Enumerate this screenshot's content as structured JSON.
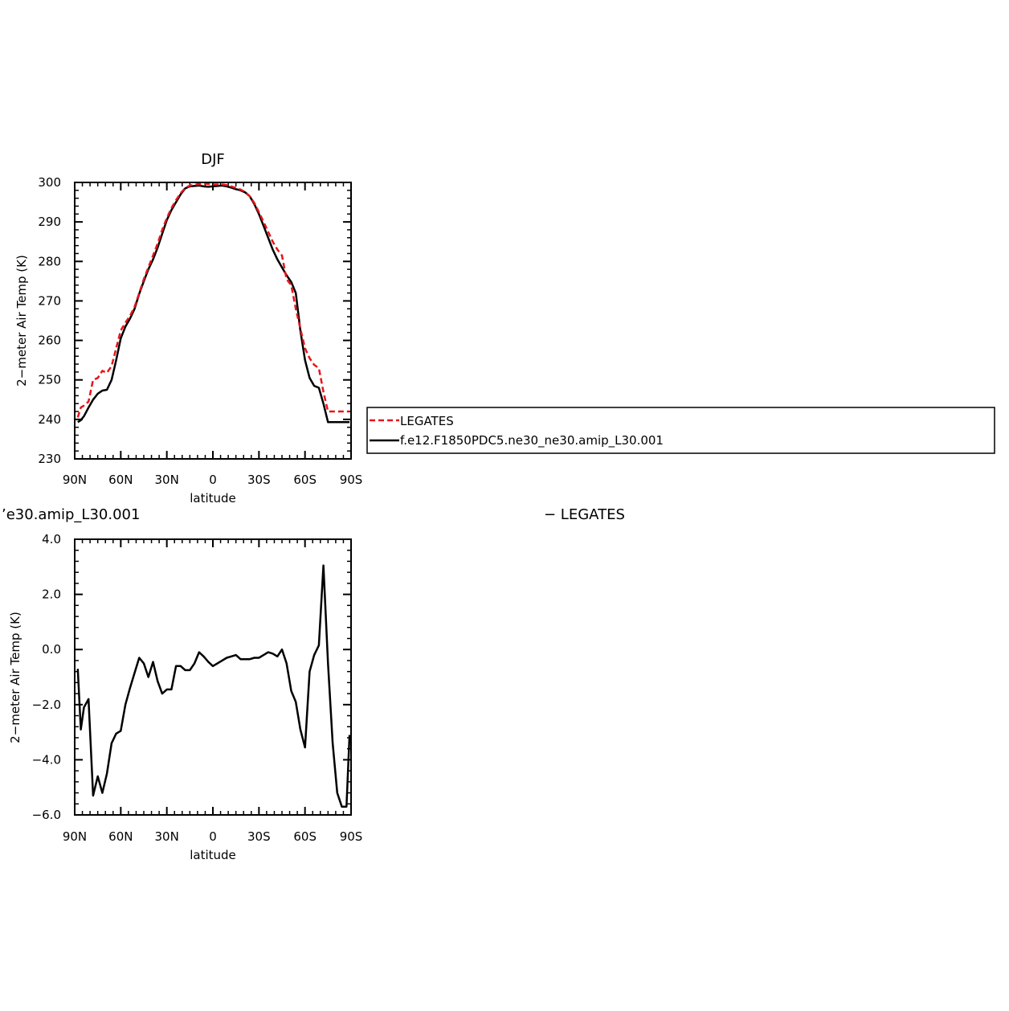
{
  "colors": {
    "obs": "#e8141b",
    "model": "#000000",
    "axis": "#000000"
  },
  "chart_data": [
    {
      "type": "line",
      "title": "DJF",
      "xlabel": "latitude",
      "ylabel": "2−meter Air Temp (K)",
      "xlim": [
        -90,
        90
      ],
      "ylim": [
        230,
        300
      ],
      "xticks": [
        -90,
        -60,
        -30,
        0,
        30,
        60,
        90
      ],
      "xtick_labels": [
        "90N",
        "60N",
        "30N",
        "0",
        "30S",
        "60S",
        "90S"
      ],
      "yticks": [
        230,
        240,
        250,
        260,
        270,
        280,
        290,
        300
      ],
      "ytick_labels": [
        "230",
        "240",
        "250",
        "260",
        "270",
        "280",
        "290",
        "300"
      ],
      "x_minor_step": 5,
      "y_minor_step": 2,
      "legend": {
        "placement": "right",
        "entries": [
          "LEGATES",
          "f.e12.F1850PDC5.ne30_ne30.amip_L30.001"
        ]
      },
      "series": [
        {
          "name": "LEGATES",
          "color": "#e8141b",
          "dash": "dashed",
          "x": [
            -88,
            -86,
            -84,
            -81,
            -78,
            -75,
            -72,
            -69,
            -66,
            -63,
            -60,
            -57,
            -54,
            -51,
            -48,
            -45,
            -42,
            -39,
            -36,
            -33,
            -30,
            -27,
            -24,
            -21,
            -18,
            -15,
            -12,
            -9,
            -6,
            -3,
            0,
            3,
            6,
            9,
            12,
            15,
            18,
            21,
            24,
            27,
            30,
            33,
            36,
            39,
            42,
            45,
            48,
            51,
            54,
            57,
            60,
            63,
            66,
            69,
            72,
            75,
            78,
            81,
            84,
            87,
            89
          ],
          "values": [
            240.5,
            243.0,
            243.5,
            244.5,
            250.0,
            250.5,
            252.3,
            251.8,
            253.5,
            258.0,
            262.5,
            264.5,
            266.2,
            268.5,
            272.0,
            275.5,
            278.5,
            281.5,
            284.5,
            288.0,
            291.0,
            293.5,
            295.5,
            297.3,
            298.6,
            299.2,
            299.4,
            299.6,
            299.7,
            299.6,
            299.5,
            299.5,
            299.5,
            299.3,
            299.0,
            298.6,
            298.2,
            297.6,
            296.5,
            294.8,
            292.5,
            290.0,
            287.5,
            285.0,
            283.0,
            281.5,
            275.5,
            274.0,
            268.0,
            263.0,
            258.0,
            255.5,
            253.8,
            253.0,
            247.0,
            242.0,
            242.0,
            242.0,
            242.0,
            242.0,
            242.0
          ]
        },
        {
          "name": "f.e12.F1850PDC5.ne30_ne30.amip_L30.001",
          "color": "#000000",
          "dash": "solid",
          "x": [
            -88,
            -86,
            -84,
            -81,
            -78,
            -75,
            -72,
            -69,
            -66,
            -63,
            -60,
            -57,
            -54,
            -51,
            -48,
            -45,
            -42,
            -39,
            -36,
            -33,
            -30,
            -27,
            -24,
            -21,
            -18,
            -15,
            -12,
            -9,
            -6,
            -3,
            0,
            3,
            6,
            9,
            12,
            15,
            18,
            21,
            24,
            27,
            30,
            33,
            36,
            39,
            42,
            45,
            48,
            51,
            54,
            57,
            60,
            63,
            66,
            69,
            72,
            75,
            78,
            81,
            84,
            87,
            89
          ],
          "values": [
            239.3,
            239.8,
            240.8,
            243.0,
            245.0,
            246.5,
            247.3,
            247.5,
            250.0,
            255.0,
            260.5,
            263.5,
            265.5,
            268.0,
            271.8,
            275.0,
            278.0,
            280.5,
            283.5,
            287.0,
            290.5,
            293.0,
            295.0,
            297.0,
            298.5,
            299.0,
            299.1,
            299.2,
            299.0,
            298.9,
            299.0,
            299.1,
            299.2,
            299.0,
            298.7,
            298.3,
            298.0,
            297.5,
            296.5,
            294.5,
            292.0,
            289.0,
            286.0,
            283.0,
            280.5,
            278.5,
            276.5,
            274.8,
            272.0,
            262.5,
            255.0,
            250.5,
            248.5,
            248.0,
            244.0,
            239.3,
            239.3,
            239.3,
            239.3,
            239.3,
            239.3
          ]
        }
      ]
    },
    {
      "type": "line",
      "title": "’e30.amip_L30.001",
      "subtitle": "− LEGATES",
      "xlabel": "latitude",
      "ylabel": "2−meter Air Temp (K)",
      "xlim": [
        -90,
        90
      ],
      "ylim": [
        -6,
        4
      ],
      "xticks": [
        -90,
        -60,
        -30,
        0,
        30,
        60,
        90
      ],
      "xtick_labels": [
        "90N",
        "60N",
        "30N",
        "0",
        "30S",
        "60S",
        "90S"
      ],
      "yticks": [
        -6,
        -4,
        -2,
        0,
        2,
        4
      ],
      "ytick_labels": [
        "−6.0",
        "−4.0",
        "−2.0",
        "0.0",
        "2.0",
        "4.0"
      ],
      "x_minor_step": 5,
      "y_minor_step": 0.4,
      "series": [
        {
          "color": "#000000",
          "dash": "solid",
          "x": [
            -88,
            -86,
            -84,
            -81,
            -78,
            -75,
            -72,
            -69,
            -66,
            -63,
            -60,
            -57,
            -54,
            -51,
            -48,
            -45,
            -42,
            -39,
            -36,
            -33,
            -30,
            -27,
            -24,
            -21,
            -18,
            -15,
            -12,
            -9,
            -6,
            -3,
            0,
            3,
            6,
            9,
            12,
            15,
            18,
            21,
            24,
            27,
            30,
            33,
            36,
            39,
            42,
            45,
            48,
            51,
            54,
            57,
            60,
            63,
            66,
            69,
            72,
            75,
            78,
            81,
            84,
            87,
            89
          ],
          "values": [
            -0.7,
            -2.9,
            -2.1,
            -1.8,
            -5.3,
            -4.6,
            -5.2,
            -4.5,
            -3.4,
            -3.05,
            -2.95,
            -2.0,
            -1.4,
            -0.85,
            -0.3,
            -0.5,
            -1.0,
            -0.45,
            -1.15,
            -1.6,
            -1.45,
            -1.45,
            -0.6,
            -0.6,
            -0.75,
            -0.75,
            -0.5,
            -0.1,
            -0.25,
            -0.45,
            -0.6,
            -0.5,
            -0.4,
            -0.3,
            -0.25,
            -0.2,
            -0.35,
            -0.35,
            -0.35,
            -0.3,
            -0.3,
            -0.2,
            -0.1,
            -0.15,
            -0.25,
            0.0,
            -0.5,
            -1.5,
            -1.9,
            -2.9,
            -3.55,
            -0.8,
            -0.2,
            0.15,
            3.05,
            -0.5,
            -3.4,
            -5.2,
            -5.7,
            -5.7,
            -3.1
          ]
        }
      ]
    }
  ]
}
